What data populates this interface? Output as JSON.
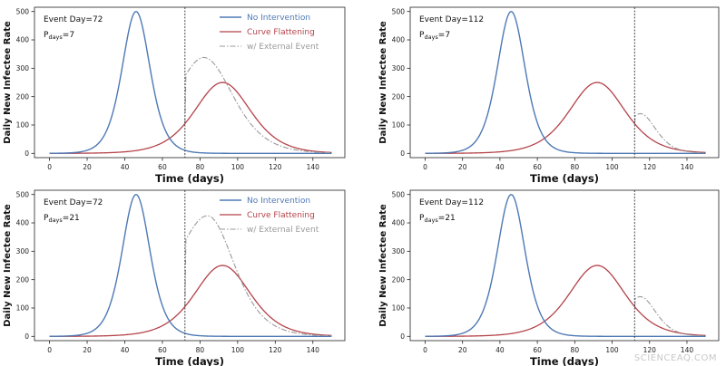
{
  "watermark": "SCIENCEAQ.COM",
  "colors": {
    "no_intervention": "#4e79b5",
    "curve_flattening": "#b4434a",
    "external_event": "#9a9a9a",
    "event_line": "#333333"
  },
  "chart_data": [
    {
      "type": "line",
      "title": "",
      "xlabel": "Time (days)",
      "ylabel": "Daily New Infectee Rate",
      "xlim": [
        -8,
        157
      ],
      "ylim": [
        -15,
        515
      ],
      "xticks": [
        0,
        20,
        40,
        60,
        80,
        100,
        120,
        140
      ],
      "yticks": [
        0,
        100,
        200,
        300,
        400,
        500
      ],
      "annotation": {
        "event_label": "Event Day=72",
        "pdays_prefix": "P",
        "pdays_sub": "days",
        "pdays_suffix": "=7"
      },
      "event_day": 72,
      "legend": {
        "position": "top-right",
        "entries": [
          "No Intervention",
          "Curve Flattening",
          "w/ External Event"
        ]
      },
      "series": [
        {
          "name": "No Intervention",
          "peak_day": 46,
          "peak_value": 500,
          "spread": 5
        },
        {
          "name": "Curve Flattening",
          "peak_day": 92,
          "peak_value": 250,
          "spread": 10
        },
        {
          "name": "w/ External Event",
          "start_day": 72,
          "peak_day": 82,
          "peak_value": 338,
          "spread": 5.5
        }
      ]
    },
    {
      "type": "line",
      "title": "",
      "xlabel": "Time (days)",
      "ylabel": "Daily New Infectee Rate",
      "xlim": [
        -8,
        157
      ],
      "ylim": [
        -15,
        515
      ],
      "xticks": [
        0,
        20,
        40,
        60,
        80,
        100,
        120,
        140
      ],
      "yticks": [
        0,
        100,
        200,
        300,
        400,
        500
      ],
      "annotation": {
        "event_label": "Event Day=112",
        "pdays_prefix": "P",
        "pdays_sub": "days",
        "pdays_suffix": "=7"
      },
      "event_day": 112,
      "legend": null,
      "series": [
        {
          "name": "No Intervention",
          "peak_day": 46,
          "peak_value": 500,
          "spread": 5
        },
        {
          "name": "Curve Flattening",
          "peak_day": 92,
          "peak_value": 250,
          "spread": 10
        },
        {
          "name": "w/ External Event",
          "start_day": 112,
          "peak_day": 115,
          "peak_value": 140,
          "spread": 3
        }
      ]
    },
    {
      "type": "line",
      "title": "",
      "xlabel": "Time (days)",
      "ylabel": "Daily New Infectee Rate",
      "xlim": [
        -8,
        157
      ],
      "ylim": [
        -15,
        515
      ],
      "xticks": [
        0,
        20,
        40,
        60,
        80,
        100,
        120,
        140
      ],
      "yticks": [
        0,
        100,
        200,
        300,
        400,
        500
      ],
      "annotation": {
        "event_label": "Event Day=72",
        "pdays_prefix": "P",
        "pdays_sub": "days",
        "pdays_suffix": "=21"
      },
      "event_day": 72,
      "legend": {
        "position": "top-right",
        "entries": [
          "No Intervention",
          "Curve Flattening",
          "w/ External Event"
        ]
      },
      "series": [
        {
          "name": "No Intervention",
          "peak_day": 46,
          "peak_value": 500,
          "spread": 5
        },
        {
          "name": "Curve Flattening",
          "peak_day": 92,
          "peak_value": 250,
          "spread": 10
        },
        {
          "name": "w/ External Event",
          "start_day": 72,
          "peak_day": 84,
          "peak_value": 425,
          "spread": 5
        }
      ]
    },
    {
      "type": "line",
      "title": "",
      "xlabel": "Time (days)",
      "ylabel": "Daily New Infectee Rate",
      "xlim": [
        -8,
        157
      ],
      "ylim": [
        -15,
        515
      ],
      "xticks": [
        0,
        20,
        40,
        60,
        80,
        100,
        120,
        140
      ],
      "yticks": [
        0,
        100,
        200,
        300,
        400,
        500
      ],
      "annotation": {
        "event_label": "Event Day=112",
        "pdays_prefix": "P",
        "pdays_sub": "days",
        "pdays_suffix": "=21"
      },
      "event_day": 112,
      "legend": null,
      "series": [
        {
          "name": "No Intervention",
          "peak_day": 46,
          "peak_value": 500,
          "spread": 5
        },
        {
          "name": "Curve Flattening",
          "peak_day": 92,
          "peak_value": 250,
          "spread": 10
        },
        {
          "name": "w/ External Event",
          "start_day": 112,
          "peak_day": 115,
          "peak_value": 140,
          "spread": 3
        }
      ]
    }
  ]
}
